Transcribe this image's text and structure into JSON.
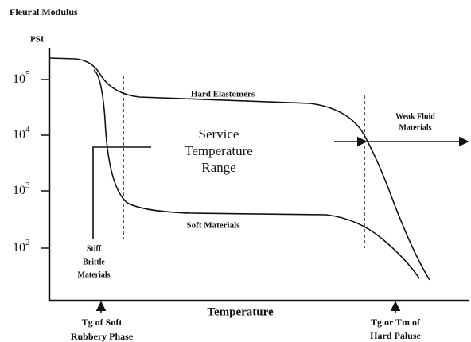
{
  "header": {
    "title": "Fleural Modulus",
    "unit": "PSI"
  },
  "y_axis": {
    "labels": [
      {
        "base": "10",
        "exp": "5"
      },
      {
        "base": "10",
        "exp": "4"
      },
      {
        "base": "10",
        "exp": "3"
      },
      {
        "base": "10",
        "exp": "2"
      }
    ]
  },
  "x_axis": {
    "label": "Temperature"
  },
  "curves": {
    "hard": "Hard Elastomers",
    "soft": "Soft Materials"
  },
  "regions": {
    "service": [
      "Service",
      "Temperature",
      "Range"
    ],
    "fluid": [
      "Weak Fluid",
      "Materials"
    ],
    "brittle": [
      "Stiff",
      "Brittle",
      "Materials"
    ]
  },
  "markers": {
    "soft_tg": [
      "Tg of Soft",
      "Rubbery Phase"
    ],
    "hard_tg": [
      "Tg or Tm of",
      "Hard Paluse"
    ]
  }
}
